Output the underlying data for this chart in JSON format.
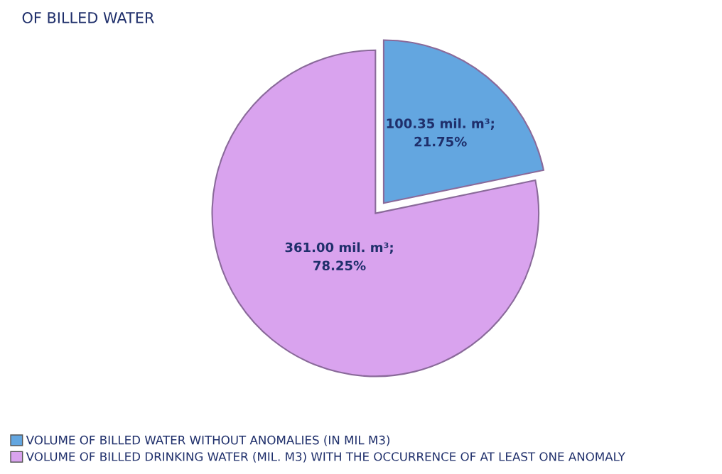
{
  "chart_data": {
    "type": "pie",
    "title": "OF BILLED WATER",
    "categories": [
      "VOLUME OF BILLED WATER WITHOUT ANOMALIES (IN MIL M3)",
      "VOLUME OF BILLED DRINKING WATER (MIL. M3) WITH THE OCCURRENCE OF AT LEAST ONE ANOMALY"
    ],
    "values": [
      100.35,
      361.0
    ],
    "colors": [
      "#63a6e0",
      "#d9a3ee"
    ],
    "value_labels": [
      "100.35 mil. m³;\n21.75%",
      "361.00 mil. m³;\n78.25%"
    ],
    "legend": "bottom left"
  }
}
